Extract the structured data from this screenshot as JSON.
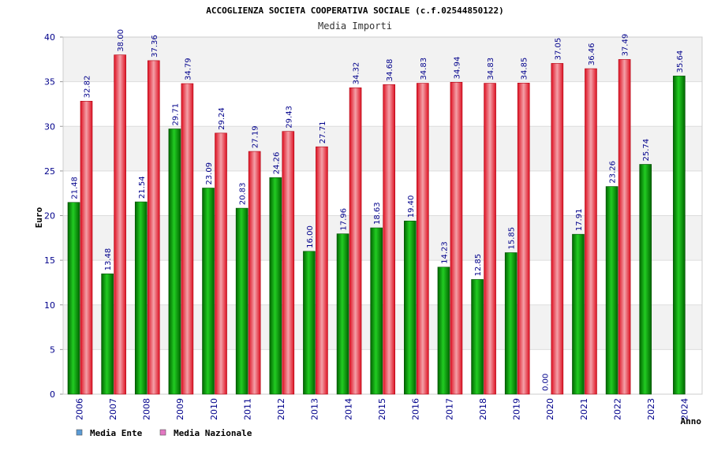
{
  "chart_data": {
    "type": "bar",
    "title": "ACCOGLIENZA SOCIETA COOPERATIVA SOCIALE (c.f.02544850122)",
    "subtitle": "Media Importi",
    "xlabel": "Anno",
    "ylabel": "Euro",
    "ylim": [
      0,
      40
    ],
    "yticks": [
      0,
      5,
      10,
      15,
      20,
      25,
      30,
      35,
      40
    ],
    "categories": [
      "2006",
      "2007",
      "2008",
      "2009",
      "2010",
      "2011",
      "2012",
      "2013",
      "2014",
      "2015",
      "2016",
      "2017",
      "2018",
      "2019",
      "2020",
      "2021",
      "2022",
      "2023",
      "2024"
    ],
    "series": [
      {
        "name": "Media Ente",
        "color": "#00aa00",
        "values": [
          21.48,
          13.48,
          21.54,
          29.71,
          23.09,
          20.83,
          24.26,
          16.0,
          17.96,
          18.63,
          19.4,
          14.23,
          12.85,
          15.85,
          0.0,
          17.91,
          23.26,
          25.74,
          35.64
        ],
        "labels": [
          "21.48",
          "13.48",
          "21.54",
          "29.71",
          "23.09",
          "20.83",
          "24.26",
          "16.00",
          "17.96",
          "18.63",
          "19.40",
          "14.23",
          "12.85",
          "15.85",
          "0.00",
          "17.91",
          "23.26",
          "25.74",
          "35.64"
        ]
      },
      {
        "name": "Media Nazionale",
        "color": "#e8202a",
        "values": [
          32.82,
          38.0,
          37.36,
          34.79,
          29.24,
          27.19,
          29.43,
          27.71,
          34.32,
          34.68,
          34.83,
          34.94,
          34.83,
          34.85,
          37.05,
          36.46,
          37.49,
          null,
          null
        ],
        "labels": [
          "32.82",
          "38.00",
          "37.36",
          "34.79",
          "29.24",
          "27.19",
          "29.43",
          "27.71",
          "34.32",
          "34.68",
          "34.83",
          "34.94",
          "34.83",
          "34.85",
          "37.05",
          "36.46",
          "37.49",
          null,
          null
        ]
      }
    ],
    "legend": {
      "position": "bottom-left",
      "items": [
        {
          "name": "Media Ente",
          "color": "#5b9bd5"
        },
        {
          "name": "Media Nazionale",
          "color": "#e377c2"
        }
      ]
    },
    "grid": true,
    "band_colors": [
      "#f2f2f2",
      "#ffffff"
    ]
  }
}
